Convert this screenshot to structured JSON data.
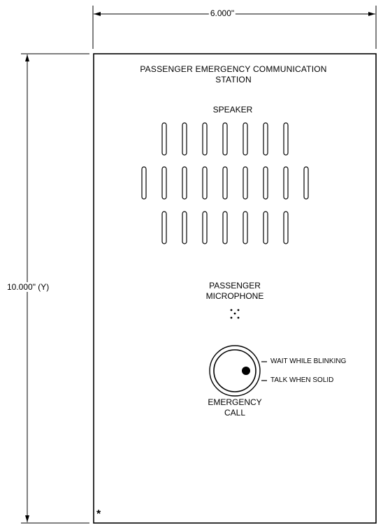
{
  "dimensions": {
    "width_label": "6.000\"",
    "height_label": "10.000\" (Y)"
  },
  "panel": {
    "title_line1": "PASSENGER EMERGENCY COMMUNICATION",
    "title_line2": "STATION",
    "speaker_label": "SPEAKER",
    "microphone_line1": "PASSENGER",
    "microphone_line2": "MICROPHONE",
    "button_line1": "EMERGENCY",
    "button_line2": "CALL",
    "indicator_wait": "WAIT WHILE BLINKING",
    "indicator_talk": "TALK WHEN SOLID",
    "footnote_marker": "*"
  },
  "speaker_grille": {
    "rows": [
      7,
      9,
      7
    ]
  }
}
